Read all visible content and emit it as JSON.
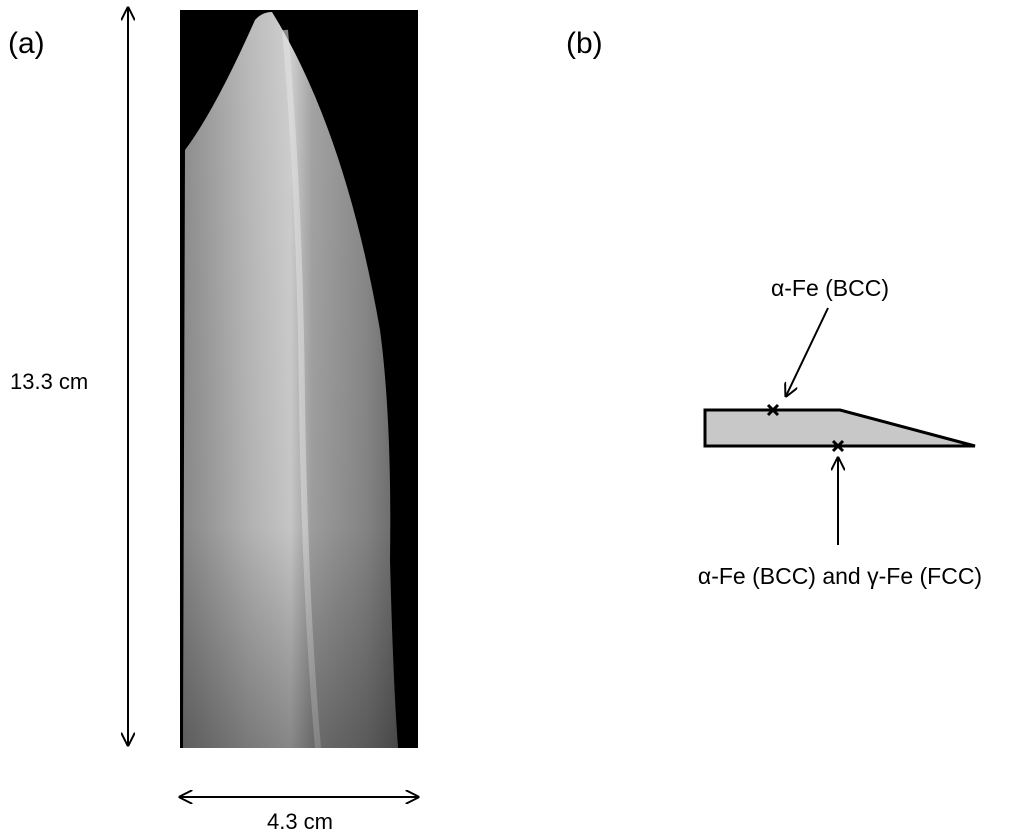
{
  "panel_a": {
    "label": "(a)",
    "height_label": "13.3 cm",
    "width_label": "4.3 cm"
  },
  "panel_b": {
    "label": "(b)",
    "top_label": "α-Fe (BCC)",
    "bottom_label": "α-Fe (BCC) and γ-Fe (FCC)"
  }
}
